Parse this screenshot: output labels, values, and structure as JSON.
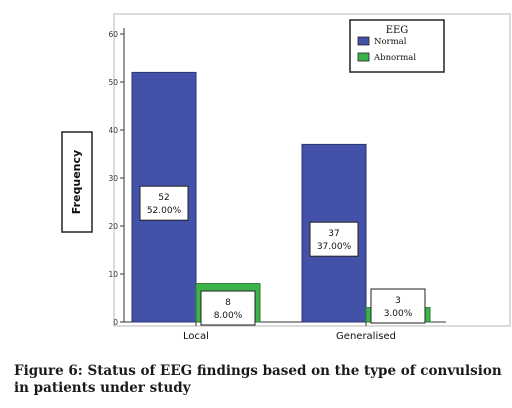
{
  "chart_data": {
    "type": "bar",
    "categories": [
      "Local",
      "Generalised"
    ],
    "series": [
      {
        "name": "Normal",
        "values": [
          52,
          37
        ],
        "labels": [
          "52",
          "37"
        ],
        "pcts": [
          "52.00%",
          "37.00%"
        ],
        "color": "#4451a8"
      },
      {
        "name": "Abnormal",
        "values": [
          8,
          3
        ],
        "labels": [
          "8",
          "3"
        ],
        "pcts": [
          "8.00%",
          "3.00%"
        ],
        "color": "#3cb44a"
      }
    ],
    "ylabel": "Frequency",
    "yticks": [
      "0",
      "10",
      "20",
      "30",
      "40",
      "50",
      "60"
    ],
    "ylim": [
      0,
      60
    ],
    "legend_title": "EEG",
    "legend_position": "top-right",
    "grid": false
  },
  "caption": "Figure 6: Status of EEG findings based on the type of convulsion in patients under study"
}
